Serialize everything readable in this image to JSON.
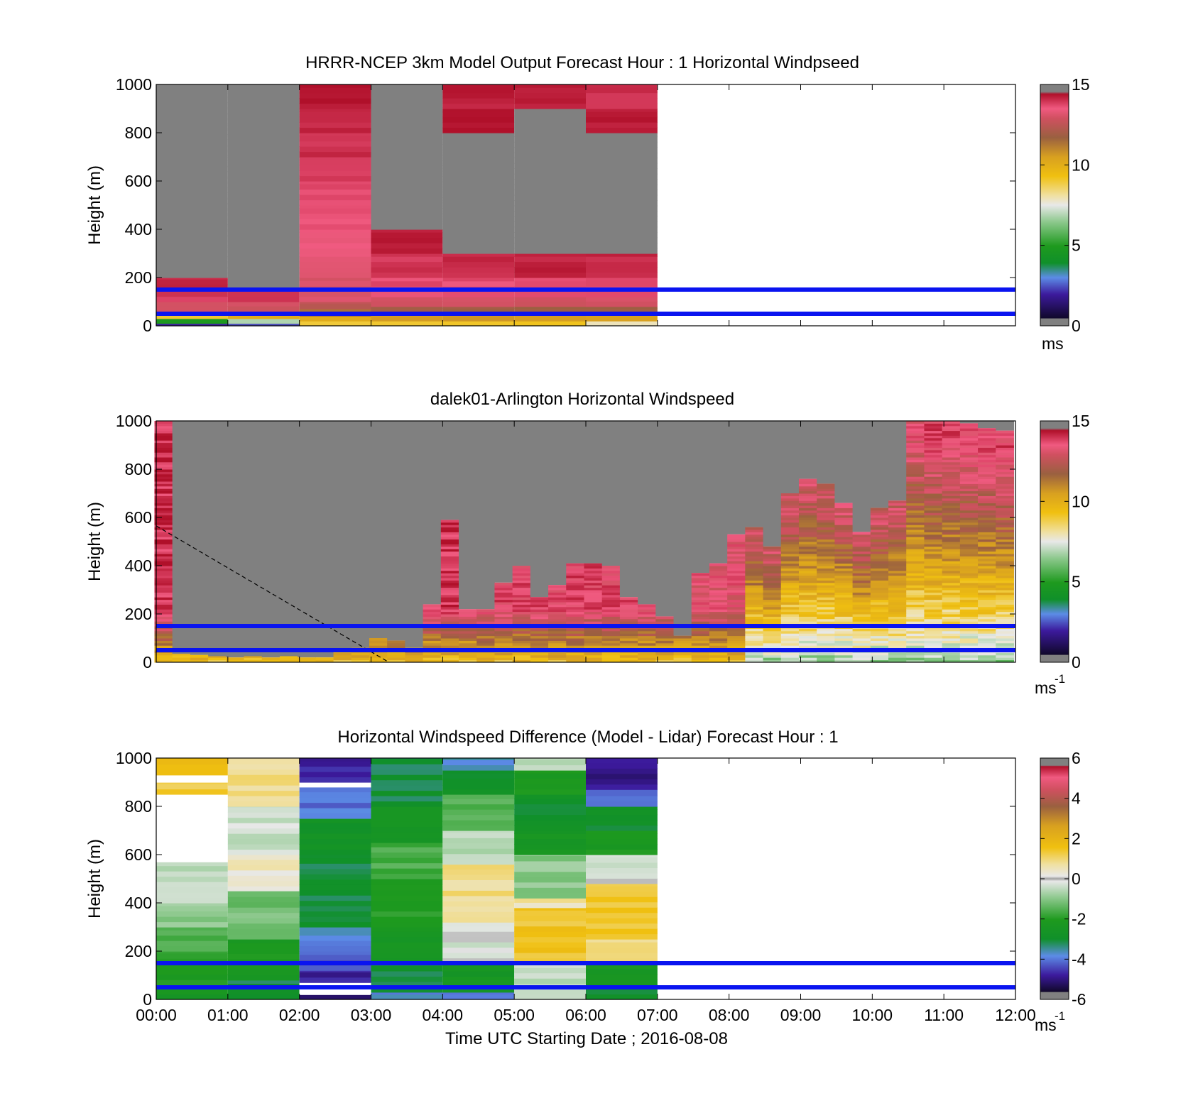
{
  "chart_data": [
    {
      "type": "heatmap",
      "title": "HRRR-NCEP 3km Model Output   Forecast Hour : 1 Horizontal Windpseed",
      "xlabel": "",
      "ylabel": "Height (m)",
      "xlim": [
        0,
        12
      ],
      "ylim": [
        0,
        1000
      ],
      "yticks": [
        "0",
        "200",
        "400",
        "600",
        "800",
        "1000"
      ],
      "x_tick_labels": [],
      "colorbar": {
        "ticks": [
          "0",
          "5",
          "10",
          "15"
        ],
        "range": [
          0,
          15
        ],
        "unit": "ms"
      },
      "reference_lines_m": [
        50,
        150
      ],
      "columns": [
        {
          "t0": 0,
          "t1": 1,
          "segments": [
            [
              0,
              10,
              1.5
            ],
            [
              10,
              30,
              5
            ],
            [
              30,
              60,
              9
            ],
            [
              60,
              100,
              13
            ],
            [
              100,
              150,
              14.3
            ],
            [
              150,
              200,
              14.6
            ],
            [
              200,
              1000,
              -1
            ]
          ]
        },
        {
          "t0": 1,
          "t1": 2,
          "segments": [
            [
              0,
              10,
              2
            ],
            [
              10,
              30,
              7
            ],
            [
              30,
              60,
              10
            ],
            [
              60,
              100,
              13
            ],
            [
              100,
              150,
              14.3
            ],
            [
              150,
              1000,
              -1
            ]
          ]
        },
        {
          "t0": 2,
          "t1": 3,
          "segments": [
            [
              0,
              20,
              9
            ],
            [
              20,
              40,
              10
            ],
            [
              40,
              70,
              11.5
            ],
            [
              70,
              100,
              12.5
            ],
            [
              100,
              200,
              13.2
            ],
            [
              200,
              300,
              13.5
            ],
            [
              300,
              400,
              13.7
            ],
            [
              400,
              500,
              13.9
            ],
            [
              500,
              600,
              14.1
            ],
            [
              600,
              700,
              14.3
            ],
            [
              700,
              800,
              14.5
            ],
            [
              800,
              900,
              14.7
            ],
            [
              900,
              1000,
              14.9
            ]
          ]
        },
        {
          "t0": 3,
          "t1": 4,
          "segments": [
            [
              0,
              20,
              9
            ],
            [
              20,
              50,
              10.5
            ],
            [
              50,
              80,
              12
            ],
            [
              80,
              120,
              13
            ],
            [
              120,
              200,
              14
            ],
            [
              200,
              300,
              14.4
            ],
            [
              300,
              400,
              14.8
            ],
            [
              400,
              1000,
              -1
            ]
          ]
        },
        {
          "t0": 4,
          "t1": 5,
          "segments": [
            [
              0,
              20,
              9
            ],
            [
              20,
              50,
              10.5
            ],
            [
              50,
              80,
              12
            ],
            [
              80,
              120,
              13
            ],
            [
              120,
              200,
              14
            ],
            [
              200,
              300,
              14.6
            ],
            [
              300,
              800,
              -1
            ],
            [
              800,
              900,
              15
            ],
            [
              900,
              1000,
              14.8
            ]
          ]
        },
        {
          "t0": 5,
          "t1": 6,
          "segments": [
            [
              0,
              20,
              9
            ],
            [
              20,
              50,
              10.5
            ],
            [
              50,
              80,
              12
            ],
            [
              80,
              120,
              13
            ],
            [
              120,
              200,
              14
            ],
            [
              200,
              300,
              14.7
            ],
            [
              300,
              900,
              -1
            ],
            [
              900,
              1000,
              14.8
            ]
          ]
        },
        {
          "t0": 6,
          "t1": 7,
          "segments": [
            [
              0,
              20,
              8
            ],
            [
              20,
              50,
              10.5
            ],
            [
              50,
              80,
              12
            ],
            [
              80,
              120,
              13
            ],
            [
              120,
              200,
              14
            ],
            [
              200,
              300,
              14.6
            ],
            [
              300,
              800,
              -1
            ],
            [
              800,
              900,
              14.9
            ],
            [
              900,
              1000,
              14.5
            ]
          ]
        }
      ]
    },
    {
      "type": "heatmap",
      "title": "dalek01-Arlington  Horizontal Windspeed",
      "xlabel": "",
      "ylabel": "Height (m)",
      "xlim": [
        0,
        12
      ],
      "ylim": [
        0,
        1000
      ],
      "yticks": [
        "0",
        "200",
        "400",
        "600",
        "800",
        "1000"
      ],
      "x_tick_labels": [],
      "colorbar": {
        "ticks": [
          "0",
          "5",
          "10",
          "15"
        ],
        "range": [
          0,
          15
        ],
        "unit": "ms",
        "unit_exponent": "-1"
      },
      "reference_lines_m": [
        50,
        150
      ],
      "dashed_line": [
        [
          0,
          565
        ],
        [
          3.25,
          0
        ]
      ],
      "profiles": [
        {
          "t": 0.1,
          "top": 1000,
          "cap": 14.5
        },
        {
          "t": 0.35,
          "top": 35,
          "cap": 14
        },
        {
          "t": 0.6,
          "top": 30,
          "cap": 14
        },
        {
          "t": 0.85,
          "top": 25,
          "cap": 14
        },
        {
          "t": 1.1,
          "top": 20,
          "cap": 14
        },
        {
          "t": 1.35,
          "top": 25,
          "cap": 14
        },
        {
          "t": 1.6,
          "top": 20,
          "cap": 14
        },
        {
          "t": 1.85,
          "top": 25,
          "cap": 14
        },
        {
          "t": 2.1,
          "top": 20,
          "cap": 14
        },
        {
          "t": 2.35,
          "top": 20,
          "cap": 14
        },
        {
          "t": 2.6,
          "top": 45,
          "cap": 14
        },
        {
          "t": 2.85,
          "top": 60,
          "cap": 14
        },
        {
          "t": 3.1,
          "top": 100,
          "cap": 14
        },
        {
          "t": 3.35,
          "top": 90,
          "cap": 14
        },
        {
          "t": 3.6,
          "top": 60,
          "cap": 14
        },
        {
          "t": 3.85,
          "top": 240,
          "cap": 14
        },
        {
          "t": 4.1,
          "top": 590,
          "cap": 14.5
        },
        {
          "t": 4.35,
          "top": 220,
          "cap": 14
        },
        {
          "t": 4.6,
          "top": 220,
          "cap": 14
        },
        {
          "t": 4.85,
          "top": 330,
          "cap": 14
        },
        {
          "t": 5.1,
          "top": 400,
          "cap": 14
        },
        {
          "t": 5.35,
          "top": 270,
          "cap": 14
        },
        {
          "t": 5.6,
          "top": 320,
          "cap": 14
        },
        {
          "t": 5.85,
          "top": 410,
          "cap": 14
        },
        {
          "t": 6.1,
          "top": 410,
          "cap": 14
        },
        {
          "t": 6.35,
          "top": 400,
          "cap": 14
        },
        {
          "t": 6.6,
          "top": 270,
          "cap": 14
        },
        {
          "t": 6.85,
          "top": 240,
          "cap": 14
        },
        {
          "t": 7.1,
          "top": 190,
          "cap": 14
        },
        {
          "t": 7.35,
          "top": 110,
          "cap": 14
        },
        {
          "t": 7.6,
          "top": 370,
          "cap": 13.5
        },
        {
          "t": 7.85,
          "top": 410,
          "cap": 13.5
        },
        {
          "t": 8.1,
          "top": 530,
          "cap": 13.5
        },
        {
          "t": 8.35,
          "top": 560,
          "cap": 13
        },
        {
          "t": 8.6,
          "top": 480,
          "cap": 13
        },
        {
          "t": 8.85,
          "top": 700,
          "cap": 13
        },
        {
          "t": 9.1,
          "top": 760,
          "cap": 13
        },
        {
          "t": 9.35,
          "top": 740,
          "cap": 13
        },
        {
          "t": 9.6,
          "top": 660,
          "cap": 13
        },
        {
          "t": 9.85,
          "top": 540,
          "cap": 13
        },
        {
          "t": 10.1,
          "top": 640,
          "cap": 13
        },
        {
          "t": 10.35,
          "top": 670,
          "cap": 13
        },
        {
          "t": 10.6,
          "top": 1000,
          "cap": 13.5
        },
        {
          "t": 10.85,
          "top": 1000,
          "cap": 14
        },
        {
          "t": 11.1,
          "top": 1000,
          "cap": 14
        },
        {
          "t": 11.35,
          "top": 990,
          "cap": 14
        },
        {
          "t": 11.6,
          "top": 970,
          "cap": 14
        },
        {
          "t": 11.85,
          "top": 960,
          "cap": 14
        }
      ]
    },
    {
      "type": "heatmap",
      "title": "Horizontal Windspeed Difference (Model - Lidar) Forecast Hour : 1",
      "xlabel": "Time UTC  Starting Date ; 2016-08-08",
      "ylabel": "Height (m)",
      "xlim": [
        0,
        12
      ],
      "ylim": [
        0,
        1000
      ],
      "yticks": [
        "0",
        "200",
        "400",
        "600",
        "800",
        "1000"
      ],
      "x_tick_labels": [
        "00:00",
        "01:00",
        "02:00",
        "03:00",
        "04:00",
        "05:00",
        "06:00",
        "07:00",
        "08:00",
        "09:00",
        "10:00",
        "11:00",
        "12:00"
      ],
      "colorbar": {
        "ticks": [
          "-6",
          "-4",
          "-2",
          "0",
          "2",
          "4",
          "6"
        ],
        "range": [
          -6,
          6
        ],
        "unit": "ms",
        "unit_exponent": "-1"
      },
      "reference_lines_m": [
        50,
        150
      ],
      "columns": [
        {
          "t0": 0,
          "t1": 1,
          "segments": [
            [
              0,
              60,
              -2.5
            ],
            [
              60,
              200,
              -2
            ],
            [
              200,
              300,
              -1.5
            ],
            [
              300,
              400,
              -1
            ],
            [
              400,
              570,
              -0.5
            ],
            [
              570,
              850,
              null
            ],
            [
              850,
              900,
              1.2
            ],
            [
              900,
              930,
              null
            ],
            [
              930,
              1000,
              1.5
            ]
          ]
        },
        {
          "t0": 1,
          "t1": 2,
          "segments": [
            [
              0,
              80,
              -3.2
            ],
            [
              80,
              250,
              -2.2
            ],
            [
              250,
              450,
              -1.2
            ],
            [
              450,
              470,
              0
            ],
            [
              470,
              600,
              0.4
            ],
            [
              600,
              800,
              -0.4
            ],
            [
              800,
              1000,
              0.8
            ]
          ]
        },
        {
          "t0": 2,
          "t1": 3,
          "segments": [
            [
              0,
              20,
              -5.5
            ],
            [
              20,
              70,
              null
            ],
            [
              70,
              120,
              -5
            ],
            [
              120,
              200,
              -4.5
            ],
            [
              200,
              300,
              -4
            ],
            [
              300,
              600,
              -3.2
            ],
            [
              600,
              750,
              -2.8
            ],
            [
              750,
              880,
              -4.2
            ],
            [
              880,
              900,
              null
            ],
            [
              900,
              1000,
              -5
            ]
          ]
        },
        {
          "t0": 3,
          "t1": 4,
          "segments": [
            [
              0,
              30,
              -4
            ],
            [
              30,
              150,
              -3.2
            ],
            [
              150,
              300,
              -2.5
            ],
            [
              300,
              500,
              -2
            ],
            [
              500,
              650,
              -1.6
            ],
            [
              650,
              800,
              -2.6
            ],
            [
              800,
              1000,
              -3.2
            ]
          ]
        },
        {
          "t0": 4,
          "t1": 5,
          "segments": [
            [
              0,
              30,
              -4
            ],
            [
              30,
              150,
              -2.5
            ],
            [
              150,
              320,
              -0.3
            ],
            [
              320,
              560,
              0.8
            ],
            [
              560,
              700,
              -0.6
            ],
            [
              700,
              850,
              -1.6
            ],
            [
              850,
              950,
              -3
            ],
            [
              950,
              1000,
              -3.8
            ]
          ]
        },
        {
          "t0": 5,
          "t1": 6,
          "segments": [
            [
              0,
              150,
              -0.5
            ],
            [
              150,
              380,
              1.4
            ],
            [
              380,
              420,
              0.6
            ],
            [
              420,
              600,
              -1
            ],
            [
              600,
              700,
              -2.5
            ],
            [
              700,
              850,
              -3
            ],
            [
              850,
              950,
              -2.2
            ],
            [
              950,
              1000,
              -0.7
            ]
          ]
        },
        {
          "t0": 6,
          "t1": 7,
          "segments": [
            [
              0,
              40,
              -3
            ],
            [
              40,
              150,
              -2.4
            ],
            [
              150,
              250,
              0.8
            ],
            [
              250,
              480,
              1.3
            ],
            [
              480,
              600,
              -0.3
            ],
            [
              600,
              700,
              -2.2
            ],
            [
              700,
              800,
              -3
            ],
            [
              800,
              870,
              -4.2
            ],
            [
              870,
              1000,
              -5.2
            ]
          ]
        }
      ]
    }
  ]
}
